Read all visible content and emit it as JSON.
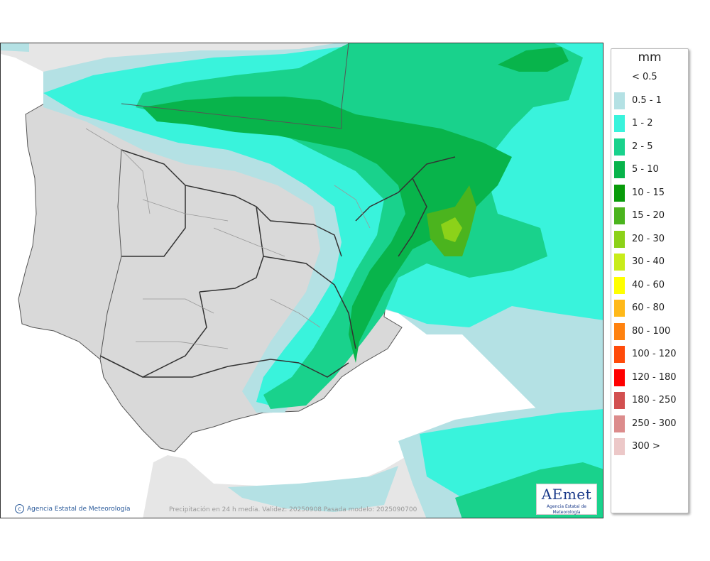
{
  "map": {
    "footer_credit": "Agencia Estatal de Meteorología",
    "footer_caption": "Precipitación en 24 h media. Validez: 20250908 Pasada modelo: 2025090700",
    "logo": {
      "word": "AEmet",
      "subtitle": "Agencia Estatal de Meteorología"
    }
  },
  "legend": {
    "unit": "mm",
    "classes": [
      {
        "label": "< 0.5",
        "color": "#ffffff"
      },
      {
        "label": "0.5 - 1",
        "color": "#b4e1e4"
      },
      {
        "label": "1 - 2",
        "color": "#39f3dc"
      },
      {
        "label": "2 - 5",
        "color": "#19d28c"
      },
      {
        "label": "5 - 10",
        "color": "#08b44b"
      },
      {
        "label": "10 - 15",
        "color": "#089b0a"
      },
      {
        "label": "15 - 20",
        "color": "#4bb41e"
      },
      {
        "label": "20 - 30",
        "color": "#8cd219"
      },
      {
        "label": "30 - 40",
        "color": "#c8ec19"
      },
      {
        "label": "40 - 60",
        "color": "#ffff00"
      },
      {
        "label": "60 - 80",
        "color": "#ffb919"
      },
      {
        "label": "80 - 100",
        "color": "#ff820f"
      },
      {
        "label": "100 - 120",
        "color": "#ff4b0a"
      },
      {
        "label": "120 - 180",
        "color": "#ff0000"
      },
      {
        "label": "180 - 250",
        "color": "#d25050"
      },
      {
        "label": "250 - 300",
        "color": "#dc8c8c"
      },
      {
        "label": "300 >",
        "color": "#ecc8c8"
      }
    ]
  }
}
